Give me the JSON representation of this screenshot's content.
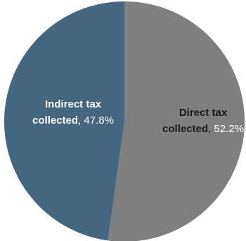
{
  "chart_data": {
    "type": "pie",
    "title": "",
    "legend": "none",
    "start_angle_deg": 0,
    "direction": "clockwise",
    "slices": [
      {
        "label_lines": [
          "Direct tax",
          "collected"
        ],
        "value": 52.2,
        "value_label": "52.2%",
        "color": "#7f7f7f",
        "label_color": "#1a1a1a",
        "value_color": "#ffffff"
      },
      {
        "label_lines": [
          "Indirect tax",
          "collected"
        ],
        "value": 47.8,
        "value_label": "47.8%",
        "color": "#44677f",
        "label_color": "#ffffff",
        "value_color": "#ffffff"
      }
    ]
  }
}
